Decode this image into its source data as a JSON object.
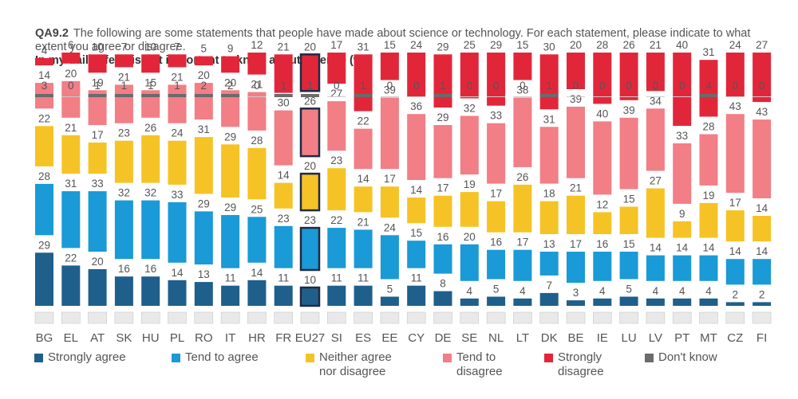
{
  "header": {
    "qcode": "QA9.2",
    "question": "The following are some statements that people have made about science or technology. For each statement, please indicate to what extent you agree or disagree.",
    "subtitle": "In my daily life, it is not important to know about science (%)"
  },
  "chart_data": {
    "type": "bar",
    "categories": [
      "BG",
      "EL",
      "AT",
      "SK",
      "HU",
      "PL",
      "RO",
      "IT",
      "HR",
      "FR",
      "EU27",
      "SI",
      "ES",
      "EE",
      "CY",
      "DE",
      "SE",
      "NL",
      "LT",
      "DK",
      "BE",
      "IE",
      "LU",
      "LV",
      "PT",
      "MT",
      "CZ",
      "FI"
    ],
    "series": [
      {
        "name": "Strongly agree",
        "color": "#1f5f8b",
        "values": [
          29,
          22,
          20,
          16,
          16,
          14,
          13,
          11,
          14,
          11,
          10,
          11,
          11,
          5,
          11,
          8,
          4,
          5,
          4,
          7,
          3,
          4,
          5,
          4,
          4,
          4,
          2,
          2
        ]
      },
      {
        "name": "Tend to agree",
        "color": "#1a9ad6",
        "values": [
          28,
          31,
          33,
          32,
          32,
          33,
          29,
          29,
          25,
          23,
          23,
          22,
          21,
          24,
          15,
          16,
          20,
          16,
          17,
          13,
          17,
          16,
          15,
          14,
          14,
          14,
          14,
          14
        ]
      },
      {
        "name": "Neither agree nor disagree",
        "color": "#f6c326",
        "values": [
          22,
          21,
          17,
          23,
          26,
          24,
          31,
          29,
          28,
          14,
          20,
          23,
          14,
          17,
          14,
          17,
          19,
          17,
          26,
          18,
          21,
          12,
          15,
          27,
          9,
          19,
          17,
          14
        ]
      },
      {
        "name": "Tend to disagree",
        "color": "#f27e86",
        "values": [
          14,
          20,
          19,
          21,
          15,
          21,
          20,
          20,
          21,
          30,
          26,
          27,
          22,
          39,
          36,
          29,
          32,
          33,
          38,
          31,
          39,
          40,
          39,
          34,
          33,
          28,
          43,
          43
        ]
      },
      {
        "name": "Strongly disagree",
        "color": "#e2263a",
        "values": [
          4,
          6,
          10,
          7,
          10,
          7,
          5,
          9,
          12,
          21,
          20,
          17,
          31,
          15,
          24,
          29,
          25,
          29,
          15,
          30,
          20,
          28,
          26,
          21,
          40,
          31,
          24,
          27
        ]
      },
      {
        "name": "Don't know",
        "color": "#6b6b6b",
        "values": [
          3,
          0,
          1,
          1,
          1,
          1,
          2,
          2,
          0,
          1,
          1,
          0,
          1,
          0,
          0,
          1,
          0,
          0,
          0,
          1,
          0,
          0,
          0,
          0,
          0,
          4,
          0,
          0
        ]
      }
    ],
    "highlight": "EU27",
    "legend": [
      {
        "label": "Strongly agree",
        "color": "#1f5f8b"
      },
      {
        "label": "Tend to agree",
        "color": "#1a9ad6"
      },
      {
        "label": "Neither agree\nnor disagree",
        "color": "#f6c326"
      },
      {
        "label": "Tend to\ndisagree",
        "color": "#f27e86"
      },
      {
        "label": "Strongly\ndisagree",
        "color": "#e2263a"
      },
      {
        "label": "Don't know",
        "color": "#6b6b6b"
      }
    ]
  }
}
